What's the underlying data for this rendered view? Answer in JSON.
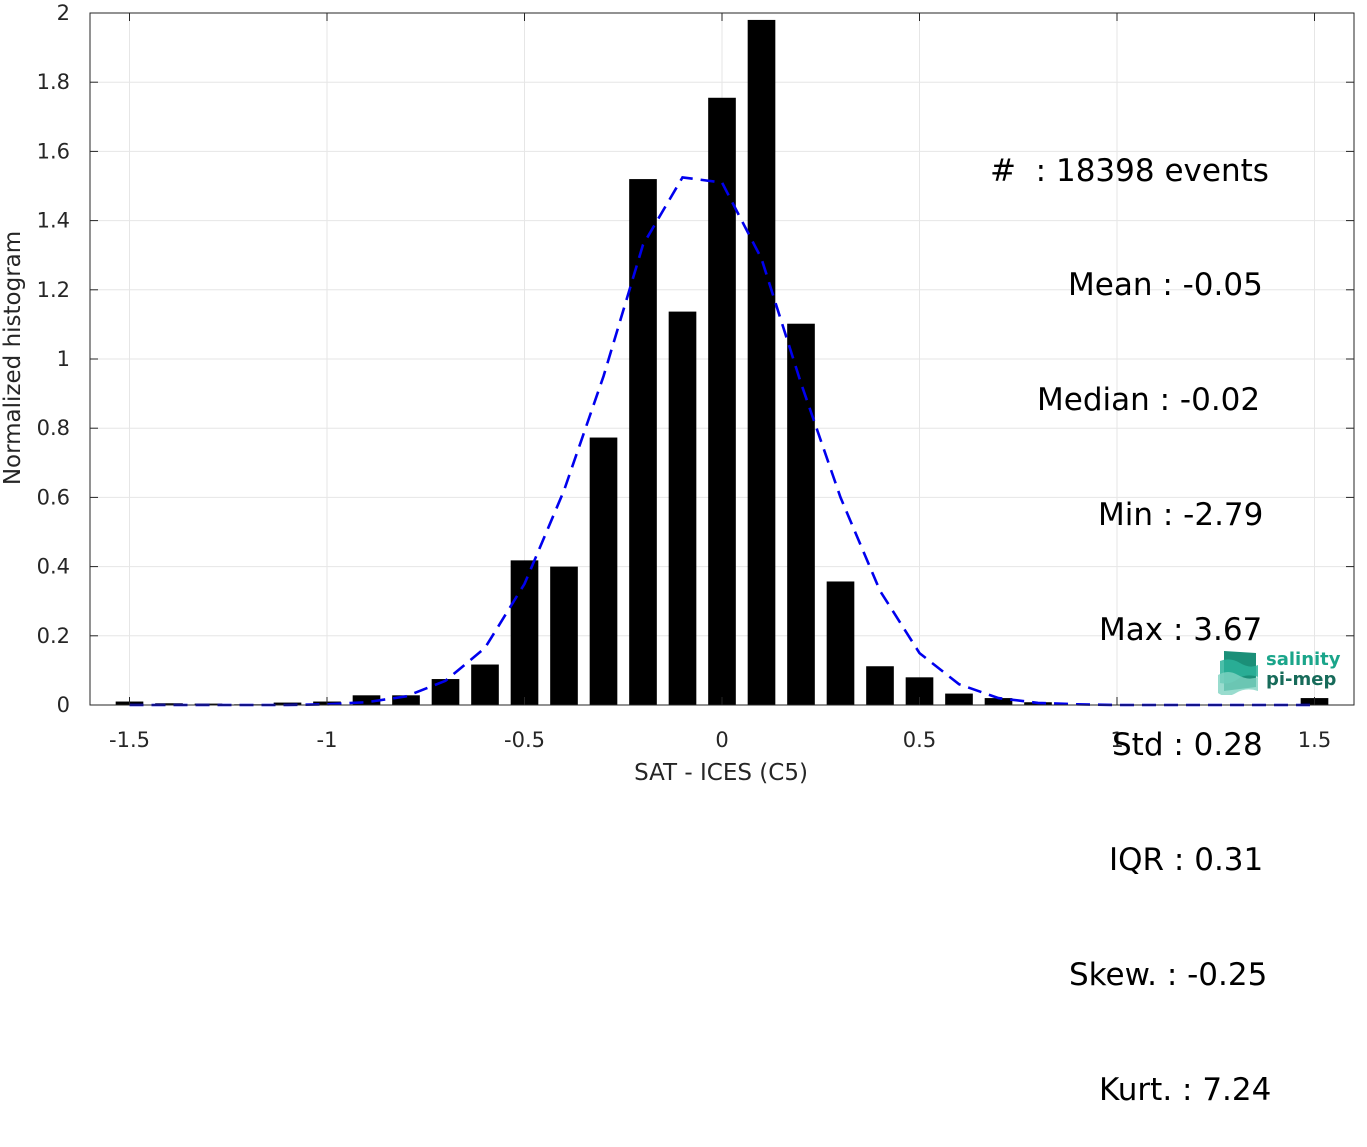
{
  "chart_data": {
    "type": "bar",
    "xlabel": "SAT - ICES (C5)",
    "ylabel": "Normalized histogram",
    "xlim": [
      -1.6,
      1.6
    ],
    "ylim": [
      0,
      2
    ],
    "xticks": [
      "-1.5",
      "-1",
      "-0.5",
      "0",
      "0.5",
      "1",
      "1.5"
    ],
    "yticks": [
      "0",
      "0.2",
      "0.4",
      "0.6",
      "0.8",
      "1",
      "1.2",
      "1.4",
      "1.6",
      "1.8",
      "2"
    ],
    "grid": true,
    "bar_width": 0.07,
    "bins": [
      {
        "x": -1.5,
        "y": 0.01
      },
      {
        "x": -1.4,
        "y": 0.005
      },
      {
        "x": -1.3,
        "y": 0.004
      },
      {
        "x": -1.2,
        "y": 0.002
      },
      {
        "x": -1.1,
        "y": 0.007
      },
      {
        "x": -1.0,
        "y": 0.01
      },
      {
        "x": -0.9,
        "y": 0.028
      },
      {
        "x": -0.8,
        "y": 0.028
      },
      {
        "x": -0.7,
        "y": 0.075
      },
      {
        "x": -0.6,
        "y": 0.117
      },
      {
        "x": -0.5,
        "y": 0.418
      },
      {
        "x": -0.4,
        "y": 0.4
      },
      {
        "x": -0.3,
        "y": 0.773
      },
      {
        "x": -0.2,
        "y": 1.52
      },
      {
        "x": -0.1,
        "y": 1.137
      },
      {
        "x": 0.0,
        "y": 1.755
      },
      {
        "x": 0.1,
        "y": 1.98
      },
      {
        "x": 0.2,
        "y": 1.102
      },
      {
        "x": 0.3,
        "y": 0.357
      },
      {
        "x": 0.4,
        "y": 0.112
      },
      {
        "x": 0.5,
        "y": 0.08
      },
      {
        "x": 0.6,
        "y": 0.033
      },
      {
        "x": 0.7,
        "y": 0.02
      },
      {
        "x": 0.8,
        "y": 0.008
      },
      {
        "x": 1.5,
        "y": 0.02
      }
    ],
    "fit_curve": {
      "style": "dashed",
      "color": "#0000ee",
      "x": [
        -1.5,
        -1.4,
        -1.3,
        -1.2,
        -1.1,
        -1.0,
        -0.9,
        -0.8,
        -0.7,
        -0.6,
        -0.5,
        -0.4,
        -0.3,
        -0.2,
        -0.1,
        0.0,
        0.1,
        0.2,
        0.3,
        0.4,
        0.5,
        0.6,
        0.7,
        0.8,
        0.9,
        1.0,
        1.1,
        1.2,
        1.3,
        1.4,
        1.5
      ],
      "y": [
        0,
        0,
        0,
        0,
        0,
        0.002,
        0.008,
        0.025,
        0.07,
        0.165,
        0.35,
        0.62,
        0.95,
        1.33,
        1.525,
        1.51,
        1.29,
        0.93,
        0.6,
        0.33,
        0.15,
        0.06,
        0.02,
        0.006,
        0.002,
        0,
        0,
        0,
        0,
        0,
        0
      ]
    }
  },
  "stats": {
    "count": "#  : 18398 events",
    "mean": "Mean : -0.05",
    "median": "Median : -0.02",
    "min": "Min : -2.79",
    "max": "Max : 3.67",
    "std": "Std : 0.28",
    "iqr": "IQR : 0.31",
    "skew": "Skew. : -0.25",
    "kurt": "Kurt. : 7.24"
  },
  "logo": {
    "line1": "salinity",
    "line2": "pi-mep",
    "color1": "#1aa58a",
    "color2": "#176b5a"
  },
  "colors": {
    "bars": "#000000",
    "grid": "#e6e6e6",
    "axis": "#262626",
    "fit": "#0000ee"
  }
}
